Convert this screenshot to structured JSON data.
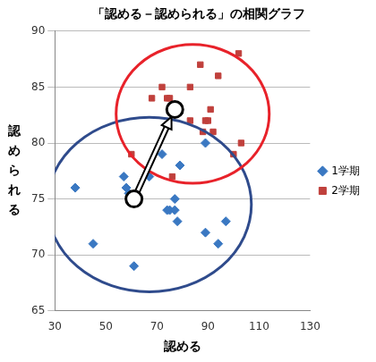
{
  "chart_data": {
    "type": "scatter",
    "title": "「認める－認められる」の相関グラフ",
    "x_label": "認める",
    "y_label": "認められる",
    "xlim": [
      30,
      130
    ],
    "xticks": [
      30,
      50,
      70,
      90,
      110,
      130
    ],
    "ylim": [
      65,
      90
    ],
    "yticks": [
      65,
      70,
      75,
      80,
      85,
      90
    ],
    "grid": "y",
    "legend": "right",
    "series": [
      {
        "name": "1学期",
        "color": "#3a78c2",
        "marker": "diamond",
        "x": [
          38,
          45,
          57,
          58,
          59,
          61,
          62,
          67,
          72,
          74,
          75,
          77,
          77,
          78,
          79,
          89,
          89,
          94,
          97
        ],
        "values": [
          76,
          71,
          77,
          76,
          75.5,
          69,
          75,
          77,
          79,
          74,
          74,
          74,
          75,
          73,
          78,
          80,
          72,
          71,
          73
        ]
      },
      {
        "name": "2学期",
        "color": "#c0403c",
        "marker": "square",
        "x": [
          60,
          68,
          72,
          74,
          75,
          76,
          83,
          83,
          87,
          88,
          89,
          90,
          91,
          92,
          94,
          100,
          102,
          103
        ],
        "values": [
          79,
          84,
          85,
          84,
          84,
          77,
          85,
          82,
          87,
          81,
          82,
          82,
          83,
          81,
          86,
          79,
          88,
          80
        ]
      }
    ],
    "annotations": [
      {
        "type": "ellipse",
        "center": [
          67,
          74.5
        ],
        "radius": [
          40,
          7.8
        ],
        "color": "#2f4b8c"
      },
      {
        "type": "ellipse",
        "center": [
          84,
          82.6
        ],
        "radius": [
          30,
          6.2
        ],
        "color": "#e8222a"
      },
      {
        "type": "arrow",
        "from": [
          61,
          75
        ],
        "to": [
          77,
          83
        ]
      }
    ]
  }
}
